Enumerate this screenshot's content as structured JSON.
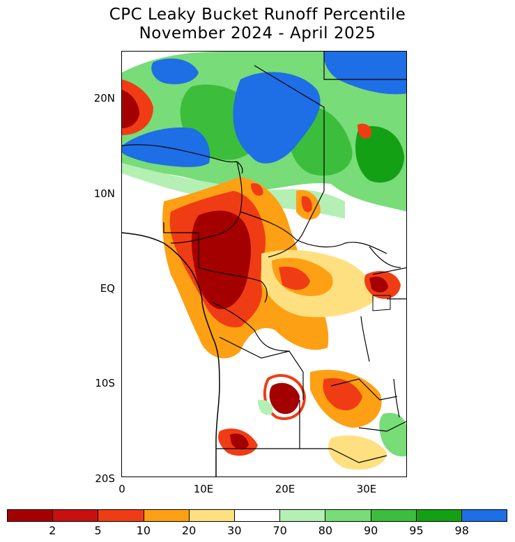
{
  "title": {
    "line1": "CPC Leaky Bucket Runoff Percentile",
    "line2": "November 2024 - April 2025"
  },
  "axes": {
    "y_labels": [
      "20N",
      "10N",
      "EQ",
      "10S",
      "20S"
    ],
    "x_labels": [
      "0",
      "10E",
      "20E",
      "30E"
    ]
  },
  "colorbar": {
    "labels": [
      "2",
      "5",
      "10",
      "20",
      "30",
      "70",
      "80",
      "90",
      "95",
      "98"
    ],
    "colors": [
      "#a50000",
      "#c81010",
      "#f03c14",
      "#fea014",
      "#ffe080",
      "#ffffff",
      "#b4f0b4",
      "#78dc78",
      "#3cbe3c",
      "#14a014",
      "#1e6ee6"
    ]
  },
  "map_colors": {
    "very_low": "#a50000",
    "low": "#f03c14",
    "moderate_low": "#fea014",
    "slightly_low": "#ffe080",
    "slightly_high": "#b4f0b4",
    "moderate_high": "#78dc78",
    "high": "#3cbe3c",
    "very_high": "#14a014",
    "extreme_high": "#1e6ee6"
  }
}
